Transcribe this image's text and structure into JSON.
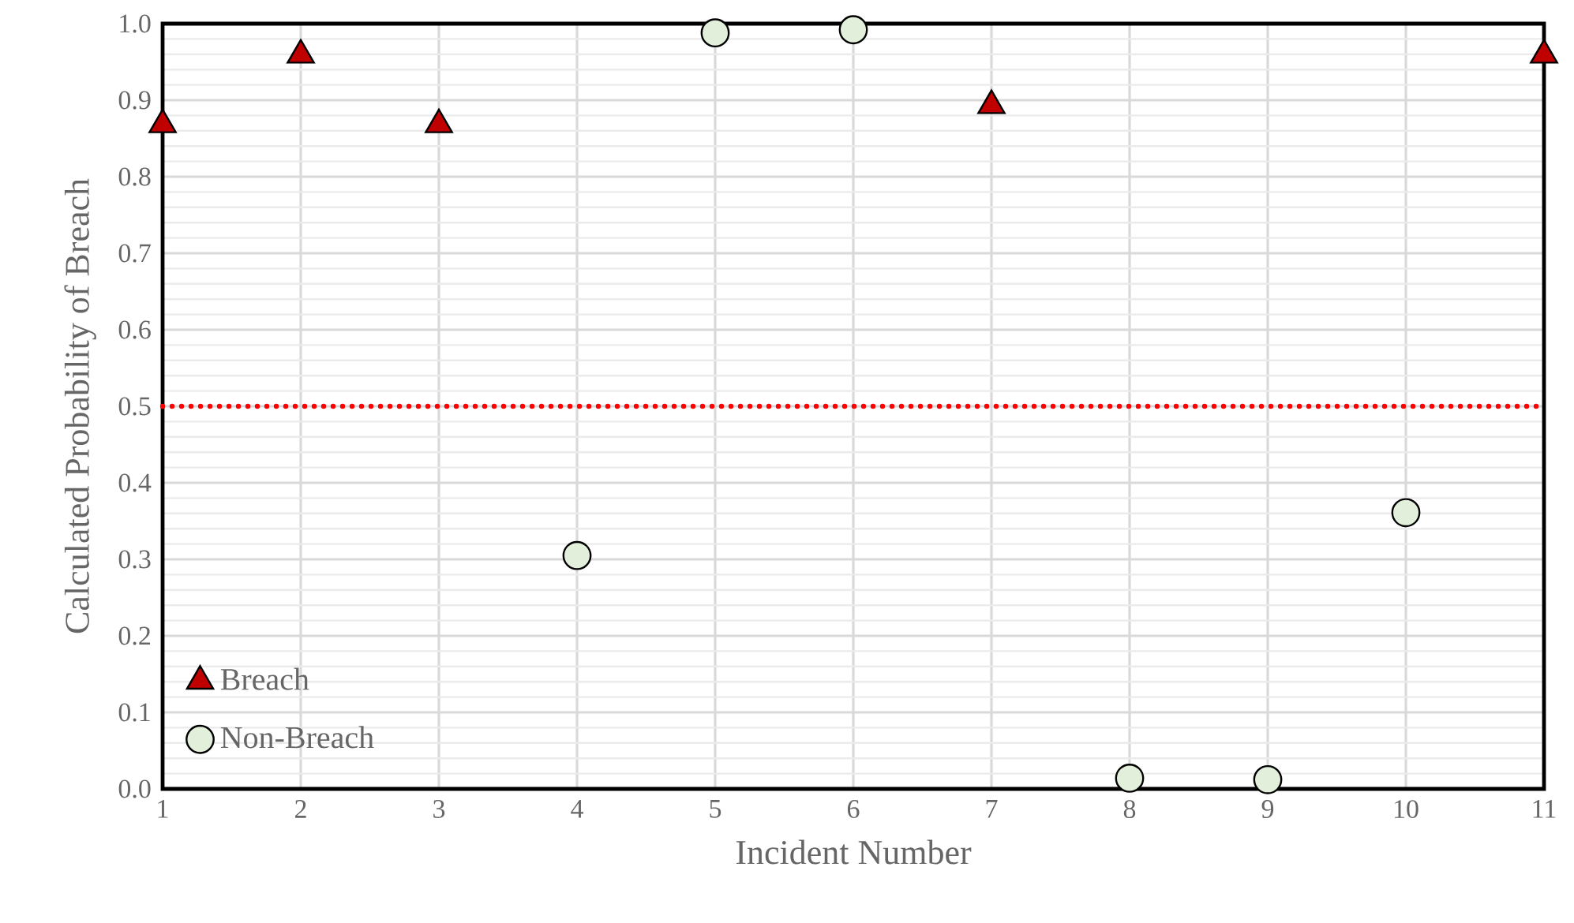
{
  "chart_data": {
    "type": "scatter",
    "xlabel": "Incident Number",
    "ylabel": "Calculated Probability of Breach",
    "xlim": [
      1,
      11
    ],
    "xticks": [
      1,
      2,
      3,
      4,
      5,
      6,
      7,
      8,
      9,
      10,
      11
    ],
    "ylim": [
      0,
      1
    ],
    "yticks": [
      {
        "value": 0,
        "label": "0.0"
      },
      {
        "value": 0.1,
        "label": "0.1"
      },
      {
        "value": 0.2,
        "label": "0.2"
      },
      {
        "value": 0.3,
        "label": "0.3"
      },
      {
        "value": 0.4,
        "label": "0.4"
      },
      {
        "value": 0.5,
        "label": "0.5"
      },
      {
        "value": 0.6,
        "label": "0.6"
      },
      {
        "value": 0.7,
        "label": "0.7"
      },
      {
        "value": 0.8,
        "label": "0.8"
      },
      {
        "value": 0.9,
        "label": "0.9"
      },
      {
        "value": 1,
        "label": "1.0"
      }
    ],
    "grid": true,
    "legend": "bottom left",
    "ref_lines": [
      {
        "axis": "y",
        "value": 0.5,
        "color": "#ff0000",
        "line_style": "dotted"
      }
    ],
    "series": [
      {
        "name": "Breach",
        "color": "#c00000",
        "marker": "triangle",
        "x": [
          1,
          2,
          3,
          7,
          11
        ],
        "values": [
          0.868,
          0.959,
          0.868,
          0.893,
          0.959
        ]
      },
      {
        "name": "Non-Breach",
        "color": "#e2efda",
        "marker": "circle",
        "x": [
          4,
          5,
          6,
          8,
          9,
          10
        ],
        "values": [
          0.305,
          0.988,
          0.992,
          0.014,
          0.012,
          0.361
        ]
      }
    ]
  }
}
